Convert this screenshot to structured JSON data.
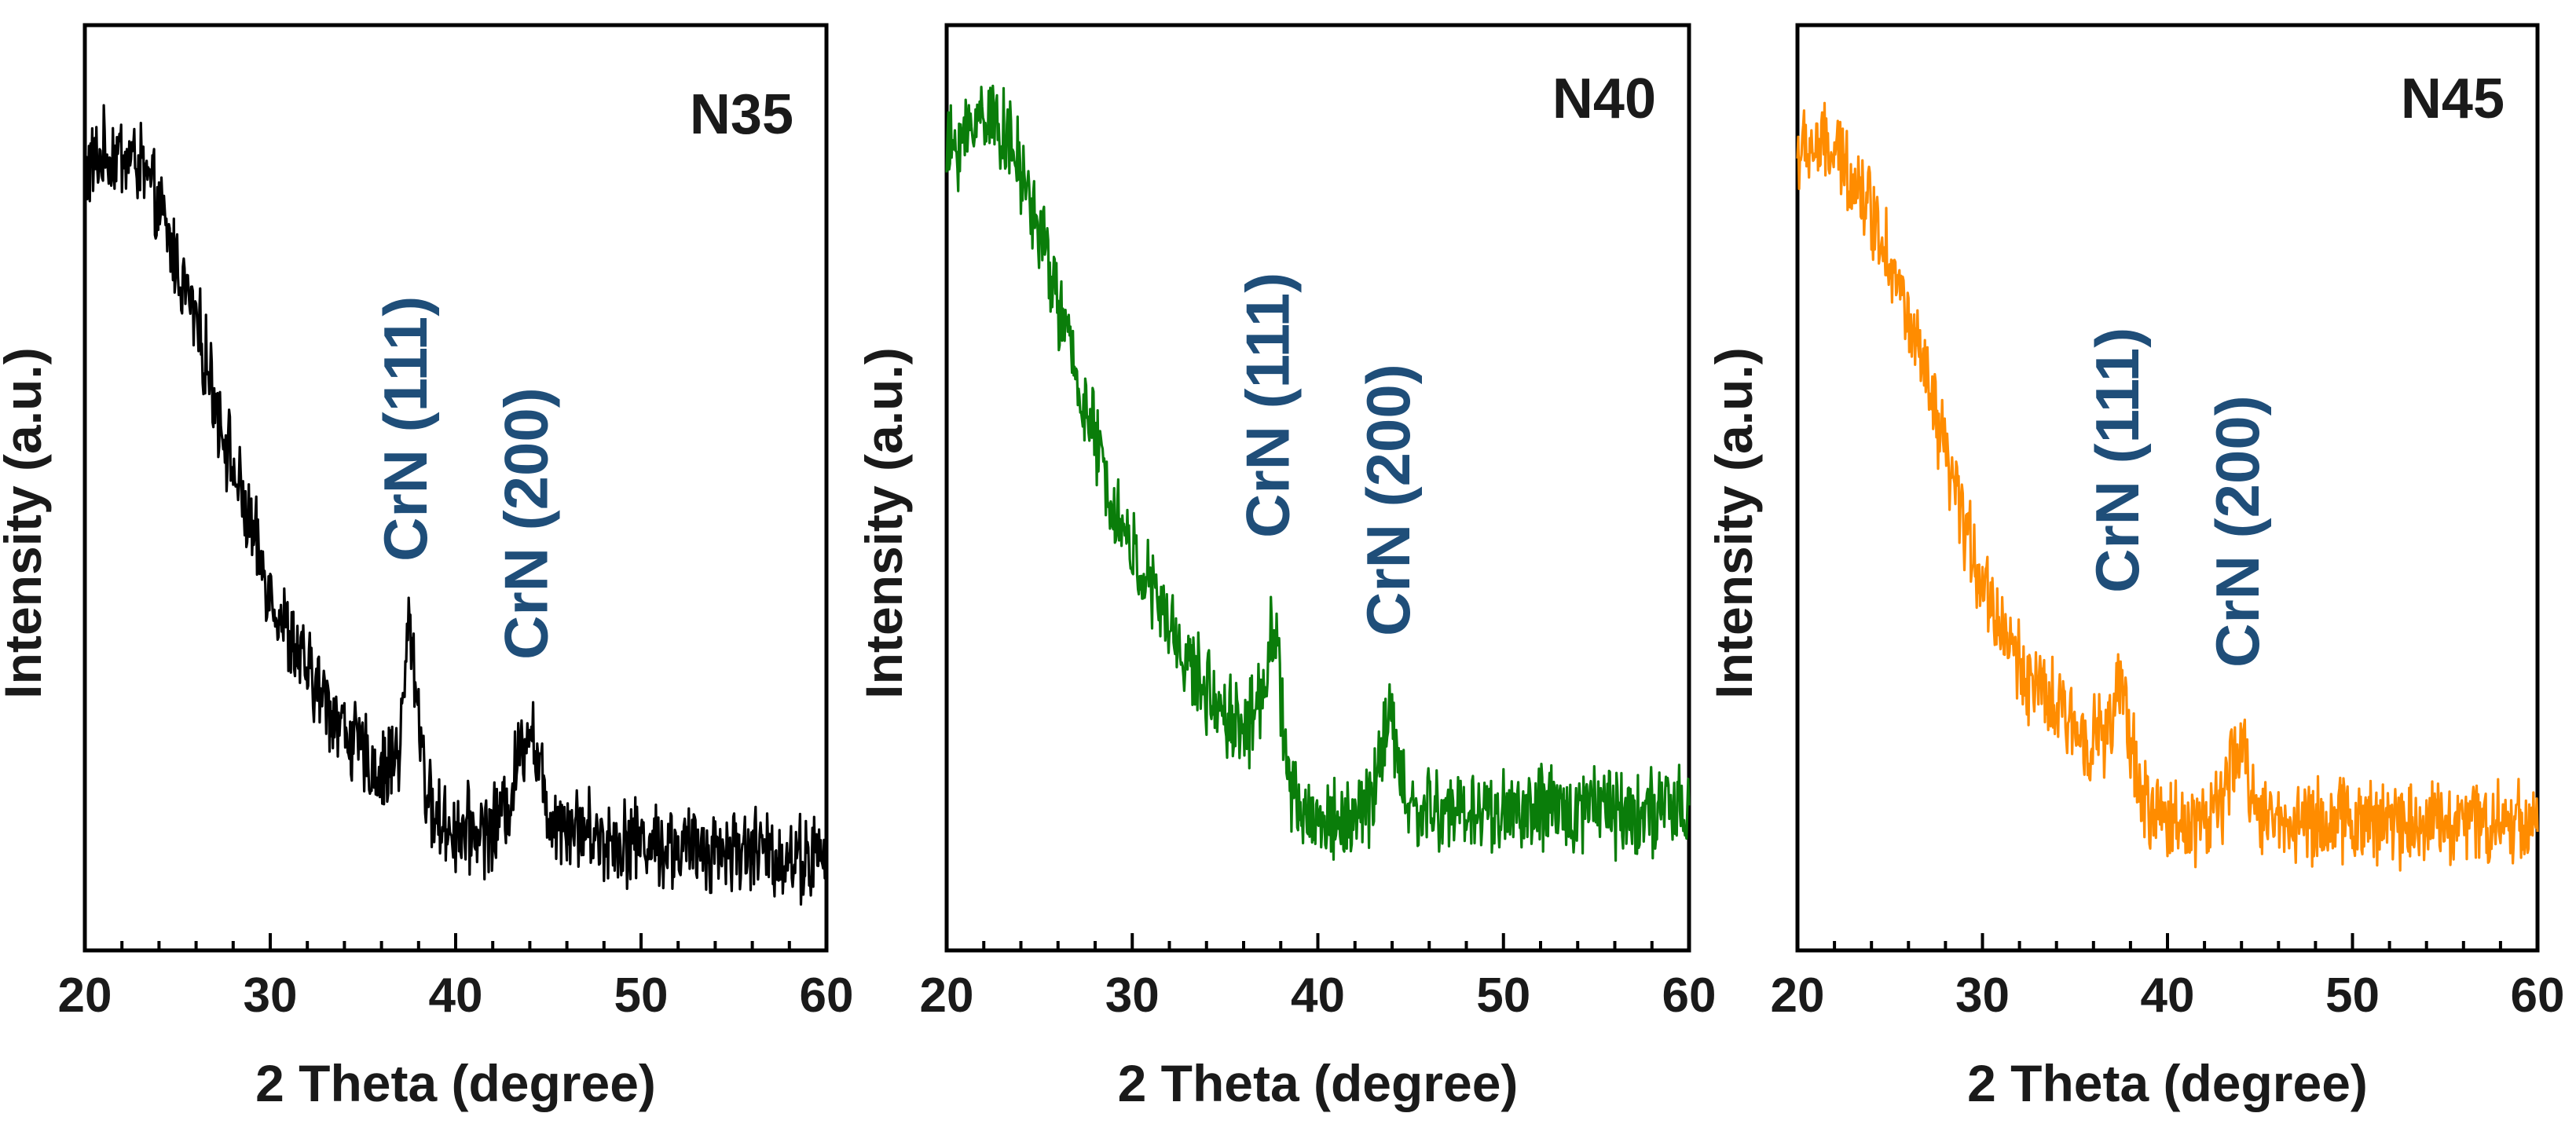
{
  "chart_data": [
    {
      "type": "line",
      "panel_label": "N35",
      "xlabel": "2 Theta (degree)",
      "ylabel": "Intensity (a.u.)",
      "xlim": [
        20,
        60
      ],
      "ylim": [
        0,
        1
      ],
      "xticks": [
        20,
        30,
        40,
        50,
        60
      ],
      "xtick_labels": [
        "20",
        "30",
        "40",
        "50",
        "60"
      ],
      "color": "#000000",
      "series": [
        {
          "name": "N35",
          "x": [
            20,
            21,
            22,
            23,
            24,
            25,
            26,
            27,
            28,
            29,
            30,
            31,
            32,
            33,
            34,
            35,
            36,
            37,
            37.5,
            38,
            38.5,
            39,
            40,
            41,
            42,
            43,
            43.5,
            44,
            44.5,
            45,
            46,
            47,
            48,
            50,
            52,
            54,
            56,
            58,
            60
          ],
          "y": [
            0.84,
            0.86,
            0.86,
            0.85,
            0.8,
            0.74,
            0.68,
            0.6,
            0.52,
            0.45,
            0.39,
            0.34,
            0.3,
            0.27,
            0.24,
            0.21,
            0.19,
            0.22,
            0.36,
            0.26,
            0.16,
            0.14,
            0.13,
            0.13,
            0.13,
            0.17,
            0.22,
            0.25,
            0.2,
            0.15,
            0.14,
            0.13,
            0.12,
            0.12,
            0.11,
            0.11,
            0.11,
            0.1,
            0.1
          ]
        }
      ],
      "annotations": [
        {
          "text": "CrN (111)",
          "x": 37.5
        },
        {
          "text": "CrN (200)",
          "x": 44
        }
      ]
    },
    {
      "type": "line",
      "panel_label": "N40",
      "xlabel": "2 Theta (degree)",
      "ylabel": "Intensity (a.u.)",
      "xlim": [
        20,
        60
      ],
      "ylim": [
        0,
        1
      ],
      "xticks": [
        20,
        30,
        40,
        50,
        60
      ],
      "xtick_labels": [
        "20",
        "30",
        "40",
        "50",
        "60"
      ],
      "color": "#0a7d0a",
      "series": [
        {
          "name": "N40",
          "x": [
            20,
            21,
            22,
            23,
            24,
            25,
            26,
            27,
            28,
            29,
            30,
            31,
            32,
            33,
            34,
            35,
            36,
            37,
            37.5,
            38,
            38.5,
            39,
            40,
            41,
            42,
            43,
            43.5,
            44,
            44.5,
            45,
            46,
            47,
            48,
            50,
            52,
            54,
            55,
            56,
            58,
            60
          ],
          "y": [
            0.86,
            0.88,
            0.91,
            0.89,
            0.84,
            0.78,
            0.7,
            0.62,
            0.55,
            0.48,
            0.43,
            0.39,
            0.35,
            0.31,
            0.28,
            0.26,
            0.24,
            0.27,
            0.36,
            0.28,
            0.17,
            0.15,
            0.14,
            0.14,
            0.14,
            0.17,
            0.23,
            0.25,
            0.18,
            0.15,
            0.15,
            0.15,
            0.15,
            0.15,
            0.15,
            0.15,
            0.17,
            0.15,
            0.15,
            0.15
          ]
        }
      ],
      "annotations": [
        {
          "text": "CrN (111)",
          "x": 37.5
        },
        {
          "text": "CrN (200)",
          "x": 44
        }
      ]
    },
    {
      "type": "line",
      "panel_label": "N45",
      "xlabel": "2 Theta (degree)",
      "ylabel": "Intensity (a.u.)",
      "xlim": [
        20,
        60
      ],
      "ylim": [
        0,
        1
      ],
      "xticks": [
        20,
        30,
        40,
        50,
        60
      ],
      "xtick_labels": [
        "20",
        "30",
        "40",
        "50",
        "60"
      ],
      "color": "#ff8c00",
      "series": [
        {
          "name": "N45",
          "x": [
            20,
            21,
            22,
            23,
            24,
            25,
            26,
            27,
            28,
            29,
            30,
            31,
            32,
            33,
            34,
            35,
            36,
            37,
            37.5,
            38,
            38.5,
            39,
            40,
            41,
            42,
            43,
            43.5,
            44,
            44.5,
            45,
            46,
            47,
            48,
            50,
            52,
            54,
            56,
            58,
            60
          ],
          "y": [
            0.86,
            0.87,
            0.86,
            0.84,
            0.8,
            0.75,
            0.68,
            0.61,
            0.53,
            0.46,
            0.4,
            0.35,
            0.31,
            0.28,
            0.26,
            0.24,
            0.23,
            0.24,
            0.29,
            0.23,
            0.17,
            0.15,
            0.14,
            0.14,
            0.14,
            0.16,
            0.2,
            0.22,
            0.18,
            0.15,
            0.14,
            0.14,
            0.14,
            0.14,
            0.14,
            0.14,
            0.14,
            0.14,
            0.14
          ]
        }
      ],
      "annotations": [
        {
          "text": "CrN (111)",
          "x": 37.5
        },
        {
          "text": "CrN (200)",
          "x": 44
        }
      ]
    }
  ]
}
